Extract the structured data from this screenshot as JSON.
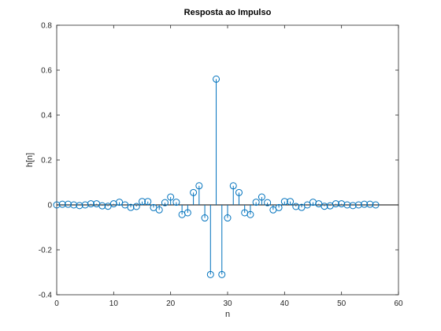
{
  "chart_data": {
    "type": "stem",
    "title": "Resposta ao Impulso",
    "xlabel": "n",
    "ylabel": "h[n]",
    "xlim": [
      0,
      60
    ],
    "ylim": [
      -0.4,
      0.8
    ],
    "xticks": [
      0,
      10,
      20,
      30,
      40,
      50,
      60
    ],
    "yticks": [
      -0.4,
      -0.2,
      0,
      0.2,
      0.4,
      0.6,
      0.8
    ],
    "xtick_labels": [
      "0",
      "10",
      "20",
      "30",
      "40",
      "50",
      "60"
    ],
    "ytick_labels": [
      "-0.4",
      "-0.2",
      "0",
      "0.2",
      "0.4",
      "0.6",
      "0.8"
    ],
    "grid": false,
    "color": "#0072bd",
    "baseline_color": "#000000",
    "x": [
      0,
      1,
      2,
      3,
      4,
      5,
      6,
      7,
      8,
      9,
      10,
      11,
      12,
      13,
      14,
      15,
      16,
      17,
      18,
      19,
      20,
      21,
      22,
      23,
      24,
      25,
      26,
      27,
      28,
      29,
      30,
      31,
      32,
      33,
      34,
      35,
      36,
      37,
      38,
      39,
      40,
      41,
      42,
      43,
      44,
      45,
      46,
      47,
      48,
      49,
      50,
      51,
      52,
      53,
      54,
      55,
      56
    ],
    "values": [
      0,
      0.003,
      0.003,
      0,
      -0.003,
      0,
      0.005,
      0.005,
      -0.004,
      -0.006,
      0.005,
      0.012,
      0,
      -0.011,
      -0.007,
      0.015,
      0.015,
      -0.012,
      -0.022,
      0.01,
      0.035,
      0.012,
      -0.043,
      -0.035,
      0.055,
      0.085,
      -0.058,
      -0.31,
      0.56,
      -0.31,
      -0.058,
      0.085,
      0.055,
      -0.035,
      -0.043,
      0.012,
      0.035,
      0.01,
      -0.022,
      -0.012,
      0.015,
      0.015,
      -0.007,
      -0.011,
      0,
      0.012,
      0.005,
      -0.006,
      -0.004,
      0.005,
      0.005,
      0,
      -0.003,
      0,
      0.003,
      0.003,
      0
    ]
  }
}
